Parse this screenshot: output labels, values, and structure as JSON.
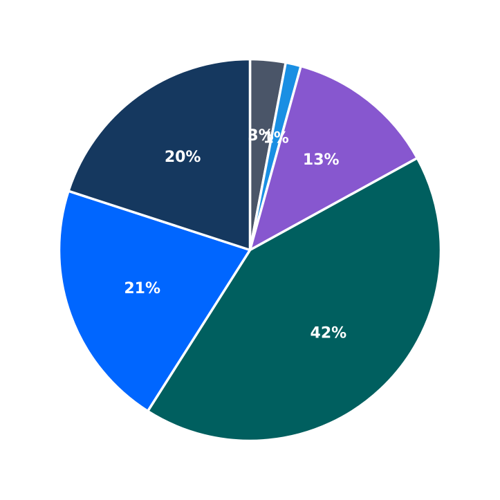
{
  "chart_data": {
    "type": "pie",
    "title": "",
    "categories": [
      "",
      "",
      "",
      "",
      "",
      ""
    ],
    "values": [
      3,
      1.3,
      12.7,
      42,
      21,
      20
    ],
    "labels": [
      "3%",
      "1%",
      "13%",
      "42%",
      "21%",
      "20%"
    ],
    "colors": [
      "#4a5568",
      "#1a8fe3",
      "#8757cf",
      "#005f5f",
      "#0066ff",
      "#15385f"
    ],
    "start": "12 o'clock",
    "direction": "clockwise",
    "legend": "none",
    "label_color": "#ffffff"
  }
}
